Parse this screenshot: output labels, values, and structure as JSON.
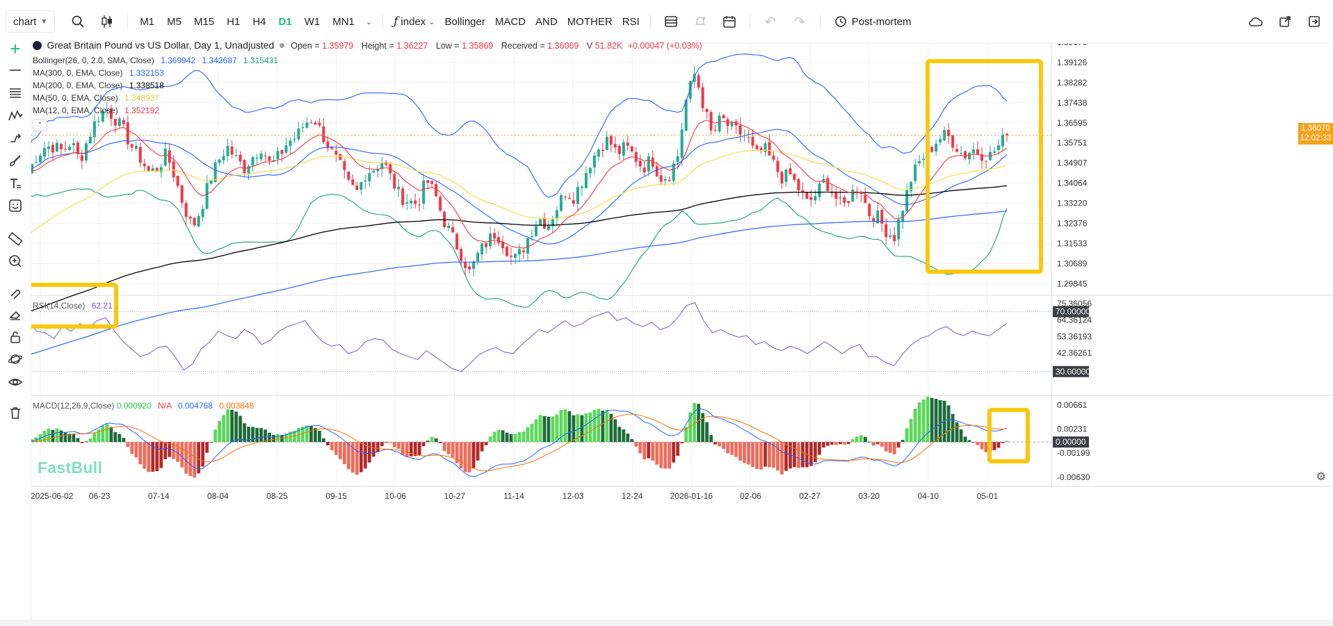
{
  "toolbar": {
    "chart_select": "chart",
    "periods": [
      "M1",
      "M5",
      "M15",
      "H1",
      "H4",
      "D1",
      "W1",
      "MN1"
    ],
    "active_period": "D1",
    "index_label": "index",
    "indicators": [
      "Bollinger",
      "MACD",
      "AND",
      "MOTHER",
      "RSI"
    ],
    "post_mortem": "Post-mortem"
  },
  "legend": {
    "title": "Great Britain Pound vs US Dollar, Day 1, Unadjusted",
    "open_label": "Open =",
    "open": "1.35979",
    "height_label": "Height =",
    "height": "1.36227",
    "low_label": "Low =",
    "low": "1.35869",
    "received_label": "Received =",
    "received": "1.36069",
    "volume_label": "V",
    "volume": "51.82K",
    "change": "+0.00047 (+0.03%)",
    "bollinger_label": "Bollinger(26, 0, 2.0, SMA, Close)",
    "bollinger_values": [
      "1.369942",
      "1.342687",
      "1.315431"
    ],
    "ma300_label": "MA(300, 0, EMA, Close)",
    "ma300": "1.332153",
    "ma200_label": "MA(200, 0, EMA, Close)",
    "ma200": "1.338518",
    "ma50_label": "MA(50, 0, EMA, Close)",
    "ma50": "1.348937",
    "ma12_label": "MA(12, 0, EMA, Close)",
    "ma12": "1.352192",
    "rsi_label": "RSI(14,Close)",
    "rsi": "62.21",
    "macd_label": "MACD(12,26,9,Close)",
    "macd_hist": "0.000920",
    "macd_na": "N/A",
    "macd_line": "0.004768",
    "macd_signal": "0.003848"
  },
  "price_axis": {
    "ticks": [
      "1.39970",
      "1.39126",
      "1.38282",
      "1.37438",
      "1.36595",
      "1.35751",
      "1.34907",
      "1.34064",
      "1.33220",
      "1.32376",
      "1.31533",
      "1.30689",
      "1.29845"
    ],
    "current_price": "1.36070",
    "countdown": "12:02:33"
  },
  "rsi_axis": {
    "ticks": [
      "75.36056",
      "70.00000",
      "64.36124",
      "53.36193",
      "42.36261",
      "30.00000"
    ]
  },
  "macd_axis": {
    "ticks": [
      "0.00661",
      "0.00231",
      "0.00000",
      "-0.00199",
      "-0.00630"
    ]
  },
  "time_axis": [
    "2025-06-02",
    "06-23",
    "07-14",
    "08-04",
    "08-25",
    "09-15",
    "10-06",
    "10-27",
    "11-14",
    "12-03",
    "12-24",
    "2026-01-16",
    "02-06",
    "02-27",
    "03-20",
    "04-10",
    "05-01"
  ],
  "brand": "FastBull",
  "colors": {
    "up": "#22ab94",
    "down": "#f23645",
    "bb_outer": "#2962ff",
    "bb_mid": "#1b9e77",
    "ma300": "#2962ff",
    "ma200": "#000000",
    "ma50": "#f5e05a",
    "ma12": "#f23645",
    "rsi": "#7e57c2",
    "macd": "#2962ff",
    "signal": "#ff6d00",
    "highlight": "#f9c80e"
  },
  "chart_data": [
    {
      "type": "candlestick",
      "title": "Great Britain Pound vs US Dollar, Day 1, Unadjusted",
      "x_labels": [
        "2025-06-02",
        "06-23",
        "07-14",
        "08-04",
        "08-25",
        "09-15",
        "10-06",
        "10-27",
        "11-14",
        "12-03",
        "12-24",
        "2026-01-16",
        "02-06",
        "02-27",
        "03-20",
        "04-10",
        "05-01"
      ],
      "ylim": [
        1.2942,
        1.4023
      ],
      "close_path": [
        1.345,
        1.352,
        1.356,
        1.356,
        1.354,
        1.358,
        1.35,
        1.36,
        1.368,
        1.372,
        1.368,
        1.363,
        1.356,
        1.351,
        1.345,
        1.347,
        1.353,
        1.343,
        1.331,
        1.322,
        1.33,
        1.342,
        1.35,
        1.356,
        1.351,
        1.347,
        1.352,
        1.356,
        1.348,
        1.352,
        1.358,
        1.36,
        1.366,
        1.368,
        1.361,
        1.354,
        1.348,
        1.34,
        1.337,
        1.345,
        1.347,
        1.35,
        1.342,
        1.335,
        1.333,
        1.332,
        1.342,
        1.336,
        1.325,
        1.318,
        1.311,
        1.303,
        1.311,
        1.316,
        1.32,
        1.315,
        1.308,
        1.312,
        1.32,
        1.326,
        1.323,
        1.33,
        1.337,
        1.335,
        1.342,
        1.35,
        1.356,
        1.359,
        1.353,
        1.356,
        1.352,
        1.347,
        1.351,
        1.343,
        1.344,
        1.352,
        1.376,
        1.387,
        1.373,
        1.36,
        1.368,
        1.364,
        1.362,
        1.36,
        1.352,
        1.355,
        1.349,
        1.343,
        1.344,
        1.338,
        1.332,
        1.336,
        1.342,
        1.336,
        1.33,
        1.336,
        1.34,
        1.328,
        1.327,
        1.321,
        1.318,
        1.331,
        1.343,
        1.35,
        1.354,
        1.359,
        1.361,
        1.357,
        1.352,
        1.355,
        1.353,
        1.352,
        1.356,
        1.361
      ],
      "series": [
        {
          "name": "Bollinger(26, 0, 2.0, SMA, Close)",
          "last": [
            1.369942,
            1.342687,
            1.315431
          ]
        },
        {
          "name": "MA(300, 0, EMA, Close)",
          "last": 1.332153
        },
        {
          "name": "MA(200, 0, EMA, Close)",
          "last": 1.338518
        },
        {
          "name": "MA(50, 0, EMA, Close)",
          "last": 1.348937
        },
        {
          "name": "MA(12, 0, EMA, Close)",
          "last": 1.352192
        }
      ],
      "current_price": 1.3607
    },
    {
      "type": "line",
      "title": "RSI(14,Close)",
      "ylim": [
        16,
        80
      ],
      "levels": [
        70,
        30
      ],
      "values": [
        63,
        57,
        56,
        52,
        60,
        57,
        62,
        59,
        64,
        66,
        57,
        50,
        45,
        40,
        42,
        46,
        47,
        40,
        31,
        35,
        45,
        50,
        57,
        54,
        52,
        58,
        55,
        48,
        51,
        57,
        60,
        62,
        64,
        56,
        50,
        47,
        48,
        42,
        44,
        50,
        52,
        51,
        45,
        42,
        40,
        38,
        44,
        40,
        36,
        32,
        30,
        35,
        41,
        44,
        46,
        43,
        42,
        48,
        53,
        58,
        56,
        60,
        64,
        60,
        62,
        66,
        68,
        70,
        64,
        66,
        62,
        60,
        63,
        58,
        60,
        66,
        74,
        76,
        64,
        56,
        58,
        55,
        53,
        54,
        48,
        50,
        46,
        44,
        47,
        45,
        42,
        46,
        50,
        46,
        42,
        46,
        48,
        40,
        40,
        36,
        34,
        42,
        48,
        52,
        54,
        58,
        60,
        56,
        54,
        57,
        55,
        54,
        58,
        62.21
      ]
    },
    {
      "type": "bar",
      "title": "MACD(12,26,9,Close)",
      "ylim": [
        -0.0078,
        0.0081
      ],
      "x_labels": [
        "2025-06-02",
        "06-23",
        "07-14",
        "08-04",
        "08-25",
        "09-15",
        "10-06",
        "10-27",
        "11-14",
        "12-03",
        "12-24",
        "2026-01-16",
        "02-06",
        "02-27",
        "03-20",
        "04-10",
        "05-01"
      ],
      "series": [
        {
          "name": "MACD",
          "last": 0.004768
        },
        {
          "name": "signal",
          "last": 0.003848
        },
        {
          "name": "histogram",
          "last": 0.00092
        }
      ]
    }
  ]
}
